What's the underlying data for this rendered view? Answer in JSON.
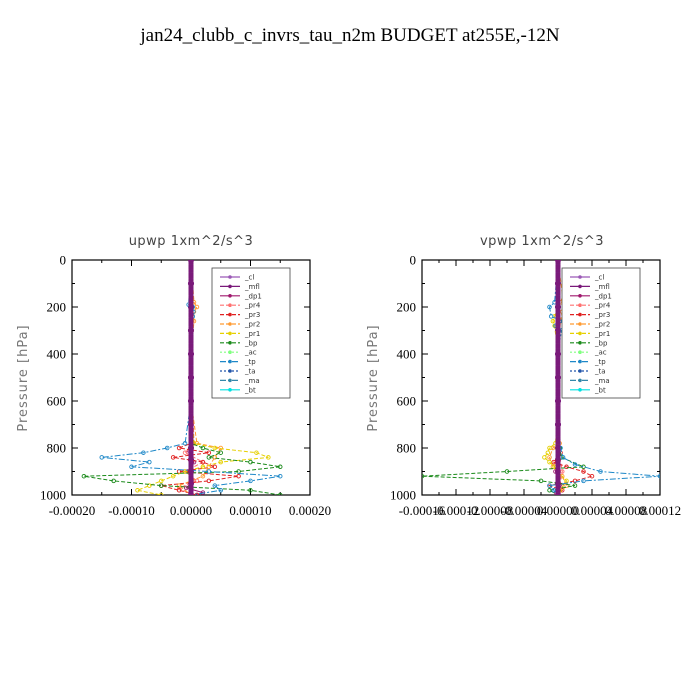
{
  "figure_title": "jan24_clubb_c_invrs_tau_n2m  BUDGET at255E,-12N",
  "chart_data": [
    {
      "type": "line",
      "title": "upwp   1xm^2/s^3",
      "ylabel": "Pressure [hPa]",
      "xlabel": "",
      "xlim": [
        -0.0002,
        0.0002
      ],
      "ylim": [
        1000,
        0
      ],
      "xticks": [
        "-0.00020",
        "-0.00010",
        "0.00000",
        "0.00010",
        "0.00020"
      ],
      "yticks": [
        "0",
        "200",
        "400",
        "600",
        "800",
        "1000"
      ],
      "legend_position": "top-right",
      "series": [
        {
          "name": "_cl",
          "color": "#9b59b6",
          "y": [
            0,
            100,
            200,
            300,
            400,
            500,
            600,
            700,
            800,
            850,
            900,
            950,
            1000
          ],
          "x": [
            0,
            0,
            0,
            0,
            0,
            0,
            0,
            0,
            0,
            0,
            0,
            0,
            0
          ]
        },
        {
          "name": "_mfl",
          "color": "#7a1a7a",
          "y": [
            0,
            100,
            200,
            300,
            400,
            500,
            600,
            700,
            800,
            850,
            900,
            950,
            1000
          ],
          "x": [
            0,
            0,
            0,
            0,
            0,
            0,
            0,
            0,
            0,
            0,
            0,
            0,
            0
          ]
        },
        {
          "name": "_dp1",
          "color": "#a0186e",
          "y": [
            0,
            200,
            400,
            600,
            780,
            820,
            860,
            900,
            940,
            970,
            990,
            1000
          ],
          "x": [
            0,
            0,
            0,
            0,
            3e-06,
            -4e-06,
            5e-06,
            -6e-06,
            4e-06,
            -8e-06,
            2e-05,
            1e-05
          ]
        },
        {
          "name": "_pr4",
          "color": "#ff7070",
          "y": [
            0,
            400,
            780,
            820,
            860,
            900,
            940,
            970,
            1000
          ],
          "x": [
            0,
            0,
            5e-06,
            -1e-05,
            2e-05,
            -1e-05,
            1e-05,
            -2e-05,
            0
          ]
        },
        {
          "name": "_pr3",
          "color": "#e02020",
          "y": [
            0,
            500,
            780,
            800,
            820,
            840,
            860,
            880,
            900,
            920,
            940,
            960,
            980,
            1000
          ],
          "x": [
            0,
            0,
            0,
            -2e-05,
            3e-05,
            -3e-05,
            2e-05,
            4e-05,
            -2e-05,
            8e-05,
            3e-05,
            -5e-05,
            -2e-05,
            1e-05
          ]
        },
        {
          "name": "_pr2",
          "color": "#ff9a30",
          "y": [
            0,
            180,
            200,
            220,
            260,
            400,
            600,
            780,
            800,
            840,
            880,
            920,
            960,
            1000
          ],
          "x": [
            0,
            5e-06,
            1e-05,
            5e-06,
            5e-06,
            0,
            0,
            1e-05,
            5e-05,
            4e-05,
            3e-05,
            2e-05,
            -2e-05,
            0
          ]
        },
        {
          "name": "_pr1",
          "color": "#e6d000",
          "y": [
            0,
            200,
            400,
            600,
            780,
            800,
            820,
            840,
            860,
            880,
            900,
            920,
            940,
            960,
            980,
            1000
          ],
          "x": [
            0,
            0,
            0,
            0,
            5e-06,
            4e-05,
            0.00011,
            0.00013,
            5e-05,
            2e-05,
            -1e-05,
            -3e-05,
            -5e-05,
            -7e-05,
            -9e-05,
            -5e-05
          ]
        },
        {
          "name": "_bp",
          "color": "#1a8a1a",
          "y": [
            0,
            200,
            400,
            600,
            780,
            800,
            820,
            840,
            860,
            880,
            900,
            920,
            940,
            960,
            980,
            1000
          ],
          "x": [
            0,
            0,
            0,
            0,
            0,
            2e-05,
            5e-05,
            3e-05,
            0.0001,
            0.00015,
            8e-05,
            -0.00018,
            -0.00013,
            -5e-05,
            0.0001,
            0.00015
          ]
        },
        {
          "name": "_ac",
          "color": "#80ff80",
          "y": [
            0,
            500,
            800,
            900,
            1000
          ],
          "x": [
            0,
            0,
            0,
            0,
            0
          ]
        },
        {
          "name": "_tp",
          "color": "#1e88c8",
          "y": [
            0,
            190,
            200,
            220,
            240,
            600,
            780,
            800,
            820,
            840,
            860,
            880,
            900,
            920,
            940,
            960,
            980,
            1000
          ],
          "x": [
            0,
            -4e-06,
            3e-06,
            4e-06,
            3e-06,
            0,
            -1e-05,
            -4e-05,
            -8e-05,
            -0.00015,
            -7e-05,
            -0.0001,
            3e-05,
            0.00015,
            0.0001,
            4e-05,
            5e-05,
            0
          ]
        },
        {
          "name": "_ta",
          "color": "#2255aa",
          "y": [
            0,
            500,
            800,
            900,
            1000
          ],
          "x": [
            0,
            0,
            0,
            0,
            0
          ]
        },
        {
          "name": "_ma",
          "color": "#3388aa",
          "y": [
            0,
            500,
            800,
            900,
            1000
          ],
          "x": [
            0,
            0,
            0,
            0,
            0
          ]
        },
        {
          "name": "_bt",
          "color": "#00e0e0",
          "y": [
            0,
            500,
            800,
            900,
            1000
          ],
          "x": [
            0,
            0,
            0,
            0,
            0
          ]
        }
      ]
    },
    {
      "type": "line",
      "title": "vpwp   1xm^2/s^3",
      "ylabel": "Pressure [hPa]",
      "xlabel": "",
      "xlim": [
        -0.00016,
        0.00012
      ],
      "ylim": [
        1000,
        0
      ],
      "xticks": [
        "-0.00016",
        "-0.00012",
        "-0.00008",
        "-0.00004",
        "0.00000",
        "0.00004",
        "0.00008",
        "0.00012"
      ],
      "yticks": [
        "0",
        "200",
        "400",
        "600",
        "800",
        "1000"
      ],
      "legend_position": "top-right",
      "series": [
        {
          "name": "_cl",
          "color": "#9b59b6",
          "y": [
            0,
            100,
            200,
            300,
            400,
            500,
            600,
            700,
            800,
            850,
            900,
            950,
            1000
          ],
          "x": [
            0,
            0,
            0,
            0,
            0,
            0,
            0,
            0,
            0,
            0,
            0,
            0,
            0
          ]
        },
        {
          "name": "_mfl",
          "color": "#7a1a7a",
          "y": [
            0,
            100,
            200,
            300,
            400,
            500,
            600,
            700,
            800,
            850,
            900,
            950,
            1000
          ],
          "x": [
            0,
            0,
            0,
            0,
            0,
            0,
            0,
            0,
            0,
            0,
            0,
            0,
            0
          ]
        },
        {
          "name": "_dp1",
          "color": "#a0186e",
          "y": [
            0,
            200,
            400,
            600,
            800,
            900,
            960,
            990,
            1000
          ],
          "x": [
            0,
            0,
            0,
            0,
            2e-06,
            -3e-06,
            4e-06,
            -2e-06,
            0
          ]
        },
        {
          "name": "_pr4",
          "color": "#ff7070",
          "y": [
            0,
            500,
            800,
            900,
            1000
          ],
          "x": [
            0,
            0,
            0,
            5e-06,
            0
          ]
        },
        {
          "name": "_pr3",
          "color": "#e02020",
          "y": [
            0,
            500,
            780,
            820,
            860,
            880,
            900,
            920,
            940,
            960,
            980,
            1000
          ],
          "x": [
            0,
            0,
            0,
            3e-06,
            -5e-06,
            1e-05,
            3e-05,
            4e-05,
            2e-05,
            -1e-05,
            5e-06,
            0
          ]
        },
        {
          "name": "_pr2",
          "color": "#ff9a30",
          "y": [
            0,
            170,
            180,
            200,
            220,
            260,
            400,
            600,
            780,
            800,
            840,
            880,
            920,
            960,
            1000
          ],
          "x": [
            0,
            6e-06,
            4e-06,
            8e-06,
            5e-06,
            3e-06,
            0,
            0,
            2e-06,
            -6e-06,
            -1e-05,
            -6e-06,
            5e-06,
            1e-05,
            0
          ]
        },
        {
          "name": "_pr1",
          "color": "#e6d000",
          "y": [
            0,
            200,
            240,
            260,
            280,
            400,
            600,
            780,
            800,
            820,
            840,
            860,
            880,
            900,
            940,
            980,
            1000
          ],
          "x": [
            0,
            0,
            -4e-06,
            -6e-06,
            -4e-06,
            0,
            0,
            -3e-06,
            -1e-05,
            -1.2e-05,
            -1.6e-05,
            -1e-05,
            -4e-06,
            0,
            1e-05,
            2e-06,
            0
          ]
        },
        {
          "name": "_bp",
          "color": "#1a8a1a",
          "y": [
            0,
            200,
            400,
            600,
            800,
            840,
            880,
            900,
            920,
            940,
            960,
            980,
            1000
          ],
          "x": [
            0,
            0,
            0,
            0,
            2e-06,
            4e-06,
            3e-05,
            -6e-05,
            -0.00016,
            -2e-05,
            2e-05,
            -1e-05,
            0
          ]
        },
        {
          "name": "_ac",
          "color": "#80ff80",
          "y": [
            0,
            500,
            800,
            900,
            1000
          ],
          "x": [
            0,
            0,
            0,
            0,
            0
          ]
        },
        {
          "name": "_tp",
          "color": "#1e88c8",
          "y": [
            0,
            180,
            200,
            240,
            260,
            280,
            300,
            400,
            600,
            800,
            840,
            870,
            900,
            920,
            940,
            960,
            980,
            1000
          ],
          "x": [
            0,
            -4e-06,
            -1e-05,
            -8e-06,
            6e-06,
            -3e-06,
            4e-06,
            0,
            0,
            3e-06,
            6e-06,
            2e-05,
            5e-05,
            0.00012,
            3e-05,
            -1e-05,
            -5e-06,
            0
          ]
        },
        {
          "name": "_ta",
          "color": "#2255aa",
          "y": [
            0,
            500,
            800,
            900,
            1000
          ],
          "x": [
            0,
            0,
            0,
            0,
            0
          ]
        },
        {
          "name": "_ma",
          "color": "#3388aa",
          "y": [
            0,
            500,
            800,
            900,
            1000
          ],
          "x": [
            0,
            0,
            0,
            0,
            0
          ]
        },
        {
          "name": "_bt",
          "color": "#00e0e0",
          "y": [
            0,
            500,
            800,
            900,
            1000
          ],
          "x": [
            0,
            0,
            0,
            0,
            0
          ]
        }
      ]
    }
  ]
}
